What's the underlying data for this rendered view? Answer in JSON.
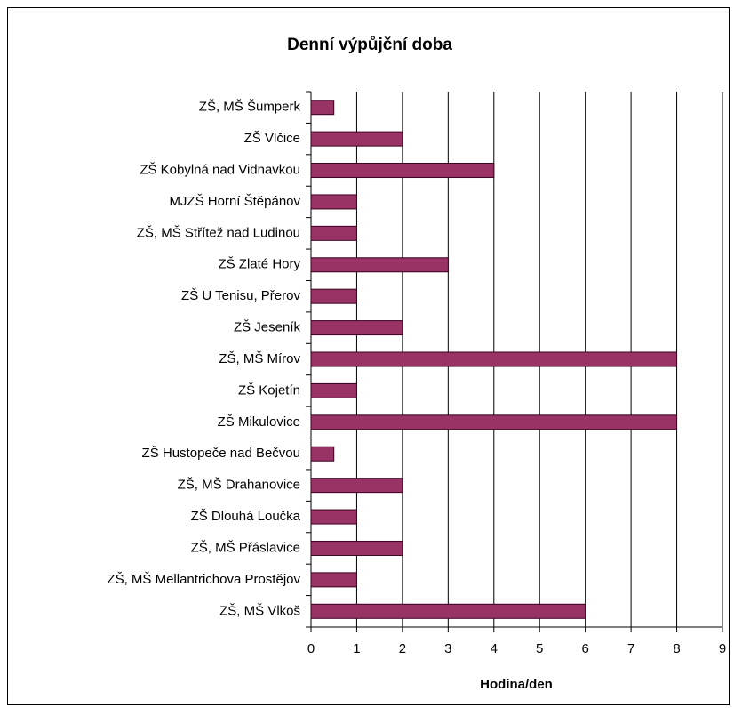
{
  "chart_data": {
    "type": "bar",
    "title": "Denní výpůjční doba",
    "x_label": "Hodina/den",
    "categories": [
      "ZŠ, MŠ Šumperk",
      "ZŠ Vlčice",
      "ZŠ Kobylná nad Vidnavkou",
      "MJZŠ Horní Štěpánov",
      "ZŠ, MŠ Střítež nad Ludinou",
      "ZŠ Zlaté Hory",
      "ZŠ U Tenisu, Přerov",
      "ZŠ Jeseník",
      "ZŠ, MŠ Mírov",
      "ZŠ Kojetín",
      "ZŠ Mikulovice",
      "ZŠ Hustopeče nad Bečvou",
      "ZŠ, MŠ Drahanovice",
      "ZŠ Dlouhá Loučka",
      "ZŠ, MŠ Přáslavice",
      "ZŠ, MŠ Mellantrichova Prostějov",
      "ZŠ, MŠ Vlkoš"
    ],
    "values": [
      0.5,
      2,
      4,
      1,
      1,
      3,
      1,
      2,
      8,
      1,
      8,
      0.5,
      2,
      1,
      2,
      1,
      6
    ],
    "color": "#993366",
    "xlim": [
      0,
      9
    ],
    "xticks": [
      0,
      1,
      2,
      3,
      4,
      5,
      6,
      7,
      8,
      9
    ],
    "grid": true
  }
}
